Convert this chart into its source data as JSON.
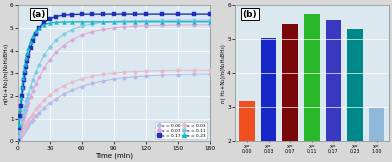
{
  "panel_a": {
    "title": "(a)",
    "xlabel": "Time (min)",
    "ylabel": "n(H₂+N₂)/n(N₂H₄BH₃)",
    "xlim": [
      0,
      180
    ],
    "ylim": [
      0,
      6
    ],
    "yticks": [
      0,
      1,
      2,
      3,
      4,
      5,
      6
    ],
    "xticks": [
      0,
      30,
      60,
      90,
      120,
      150,
      180
    ],
    "curves": [
      {
        "label": "x = 0.00",
        "plateau": 3.0,
        "rate": 0.55,
        "color": "#b8b8e8",
        "marker": "o",
        "markersize": 2.5,
        "lw": 0.7,
        "mfc": "#b8b8e8"
      },
      {
        "label": "x = 0.03",
        "plateau": 3.15,
        "rate": 0.7,
        "color": "#e8b8cc",
        "marker": "o",
        "markersize": 2.5,
        "lw": 0.7,
        "mfc": "#e8b8cc"
      },
      {
        "label": "x = 0.07",
        "plateau": 5.15,
        "rate": 0.8,
        "color": "#d8a8d8",
        "marker": "o",
        "markersize": 2.5,
        "lw": 0.7,
        "mfc": "#d8a8d8"
      },
      {
        "label": "x = 0.11",
        "plateau": 5.35,
        "rate": 1.0,
        "color": "#80c8e8",
        "marker": "o",
        "markersize": 2.5,
        "lw": 0.7,
        "mfc": "#80c8e8"
      },
      {
        "label": "x = 0.17",
        "plateau": 5.62,
        "rate": 2.2,
        "color": "#2030b8",
        "marker": "s",
        "markersize": 2.8,
        "lw": 1.0,
        "mfc": "#2030b8"
      },
      {
        "label": "x = 0.23",
        "plateau": 5.28,
        "rate": 3.0,
        "color": "#18b8c8",
        "marker": "^",
        "markersize": 2.8,
        "lw": 1.0,
        "mfc": "#18b8c8"
      }
    ],
    "legend_order": [
      0,
      2,
      4,
      1,
      3,
      5
    ],
    "background": "#dce8f0"
  },
  "panel_b": {
    "title": "(b)",
    "ylabel": "n( H₂+N₂)/n(N₂H₄BH₃)",
    "ylim": [
      2,
      6
    ],
    "yticks": [
      2,
      3,
      4,
      5,
      6
    ],
    "categories": [
      "x=\n0.00",
      "x=\n0.03",
      "x=\n0.07",
      "x=\n0.11",
      "x=\n0.17",
      "x=\n0.23",
      "x=\n1.00"
    ],
    "values": [
      3.2,
      5.05,
      5.45,
      5.75,
      5.58,
      5.3,
      2.98
    ],
    "colors": [
      "#f05020",
      "#1828c8",
      "#7a0808",
      "#28b828",
      "#3838c0",
      "#008888",
      "#90b8d8"
    ],
    "background": "#dce8f0"
  }
}
